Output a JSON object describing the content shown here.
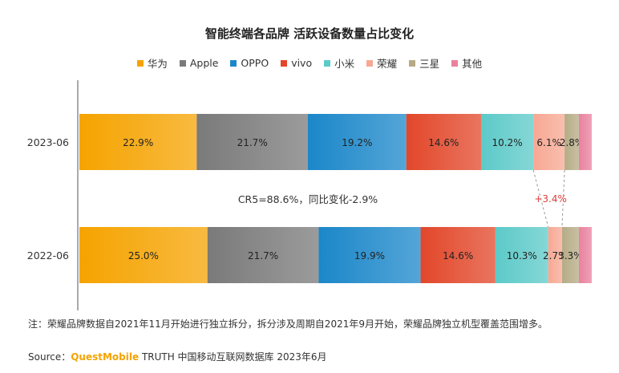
{
  "chart_data": {
    "type": "bar",
    "orientation": "horizontal",
    "stacked": "percent",
    "title": "智能终端各品牌 活跃设备数量占比变化",
    "categories": [
      "2023-06",
      "2022-06"
    ],
    "series": [
      {
        "name": "华为",
        "color": "#f5a300",
        "values": [
          22.9,
          25.0
        ],
        "labels": [
          "22.9%",
          "25.0%"
        ]
      },
      {
        "name": "Apple",
        "color": "#7a7a7a",
        "values": [
          21.7,
          21.7
        ],
        "labels": [
          "21.7%",
          "21.7%"
        ]
      },
      {
        "name": "OPPO",
        "color": "#1b87c9",
        "values": [
          19.2,
          19.9
        ],
        "labels": [
          "19.2%",
          "19.9%"
        ]
      },
      {
        "name": "vivo",
        "color": "#e2472a",
        "values": [
          14.6,
          14.6
        ],
        "labels": [
          "14.6%",
          "14.6%"
        ]
      },
      {
        "name": "小米",
        "color": "#5ccac8",
        "values": [
          10.2,
          10.3
        ],
        "labels": [
          "10.2%",
          "10.3%"
        ]
      },
      {
        "name": "荣耀",
        "color": "#f7a893",
        "values": [
          6.1,
          2.7
        ],
        "labels": [
          "6.1%",
          "2.7%"
        ]
      },
      {
        "name": "三星",
        "color": "#b5ab86",
        "values": [
          2.8,
          3.3
        ],
        "labels": [
          "2.8%",
          "3.3%"
        ]
      },
      {
        "name": "其他",
        "color": "#e9829f",
        "values": [
          2.5,
          2.5
        ],
        "labels": [
          "",
          ""
        ]
      }
    ],
    "annotations": {
      "cr5": "CR5=88.6%，同比变化-2.9%",
      "honor_change": "+3.4%",
      "honor_change_color": "#e23b3b"
    },
    "legend_position": "top"
  },
  "note": "注：荣耀品牌数据自2021年11月开始进行独立拆分，拆分涉及周期自2021年9月开始，荣耀品牌独立机型覆盖范围增多。",
  "source": {
    "prefix": "Source：",
    "brand": "QuestMobile",
    "rest": " TRUTH 中国移动互联网数据库 2023年6月"
  }
}
